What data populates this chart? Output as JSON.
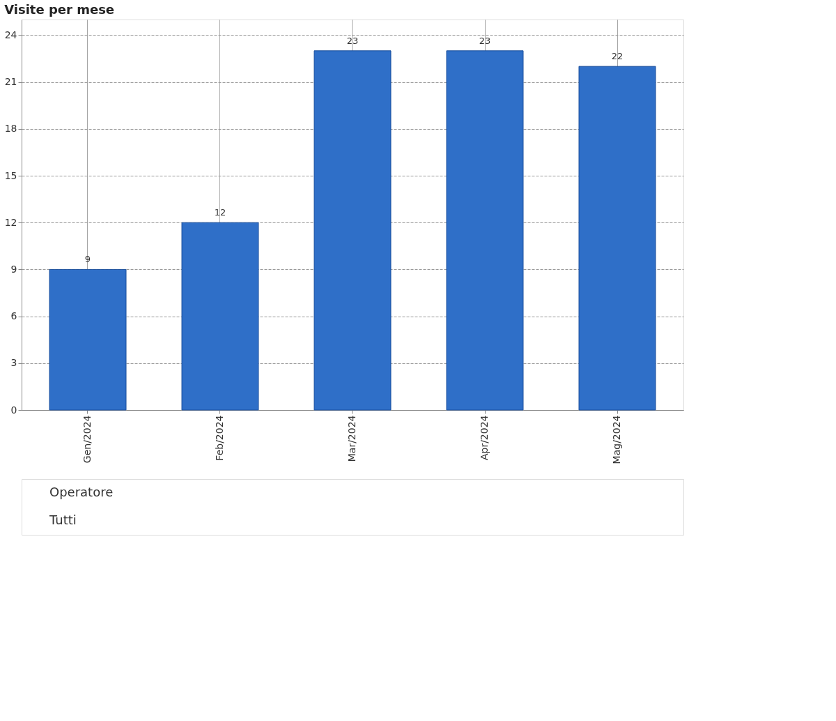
{
  "chart_data": {
    "type": "bar",
    "title": "Visite per mese",
    "categories": [
      "Gen/2024",
      "Feb/2024",
      "Mar/2024",
      "Apr/2024",
      "Mag/2024"
    ],
    "values": [
      9,
      12,
      23,
      23,
      22
    ],
    "color": "#2f6fc8",
    "ylim": [
      0,
      25
    ],
    "yticks": [
      0,
      3,
      6,
      9,
      12,
      15,
      18,
      21,
      24
    ],
    "grid": true,
    "data_labels": true,
    "annotations": [
      "Operatore",
      "Tutti"
    ]
  }
}
